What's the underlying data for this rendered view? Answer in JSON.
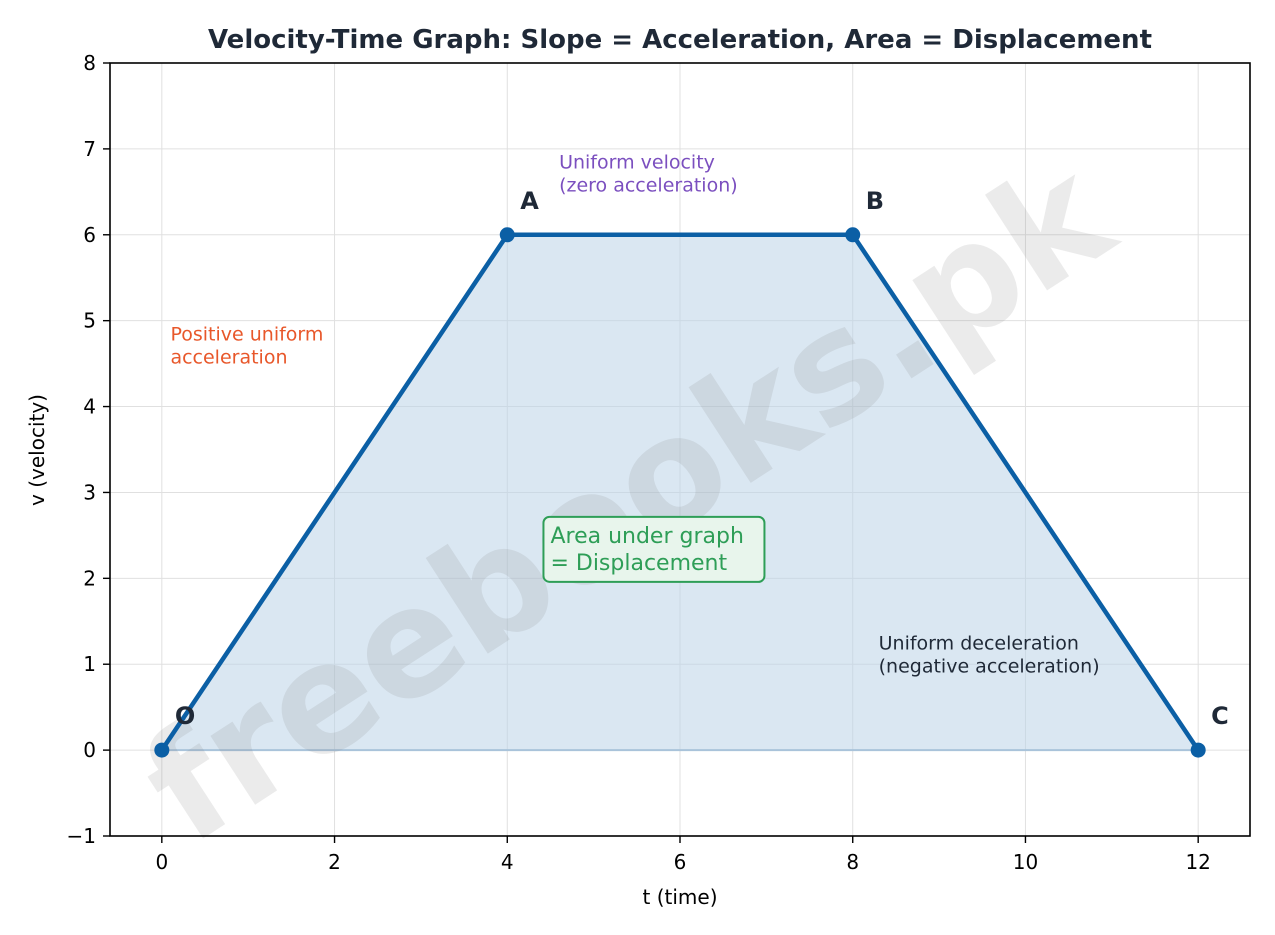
{
  "chart_data": {
    "type": "line",
    "title": "Velocity-Time Graph: Slope = Acceleration, Area = Displacement",
    "xlabel": "t (time)",
    "ylabel": "v (velocity)",
    "xlim": [
      -0.6,
      12.6
    ],
    "ylim": [
      -1,
      8
    ],
    "xticks": [
      0,
      2,
      4,
      6,
      8,
      10,
      12
    ],
    "xtick_labels": [
      "0",
      "2",
      "4",
      "6",
      "8",
      "10",
      "12"
    ],
    "yticks": [
      -1,
      0,
      1,
      2,
      3,
      4,
      5,
      6,
      7,
      8
    ],
    "ytick_labels": [
      "−1",
      "0",
      "1",
      "2",
      "3",
      "4",
      "5",
      "6",
      "7",
      "8"
    ],
    "grid": true,
    "series": [
      {
        "x": [
          0,
          4,
          8,
          12
        ],
        "y": [
          0,
          6,
          6,
          0
        ],
        "fill_under": true
      }
    ],
    "point_labels": [
      {
        "text": "O",
        "x": 0,
        "y": 0
      },
      {
        "text": "A",
        "x": 4,
        "y": 6
      },
      {
        "text": "B",
        "x": 8,
        "y": 6
      },
      {
        "text": "C",
        "x": 12,
        "y": 0
      }
    ],
    "annotations": [
      {
        "key": "accel",
        "lines": [
          "Positive uniform",
          "acceleration"
        ],
        "x": 0.1,
        "y": 4.9,
        "color": "#e8572a"
      },
      {
        "key": "uniform",
        "lines": [
          "Uniform velocity",
          "(zero acceleration)"
        ],
        "x": 4.6,
        "y": 6.9,
        "color": "#7b4fbf"
      },
      {
        "key": "decel",
        "lines": [
          "Uniform deceleration",
          "(negative acceleration)"
        ],
        "x": 8.3,
        "y": 1.3,
        "color": "#1f2937"
      }
    ],
    "area_annotation": {
      "lines": [
        "Area under graph",
        "= Displacement"
      ],
      "x": 4.5,
      "y": 2.25,
      "color": "#2e9e57",
      "box_fill": "#e8f5ec",
      "box_edge": "#2e9e57"
    },
    "watermark": "freebooks.pk",
    "colors": {
      "line": "#0b5fa5",
      "fill": "#bcd3e8",
      "grid": "#e0e0e0",
      "title": "#1f2937"
    }
  }
}
